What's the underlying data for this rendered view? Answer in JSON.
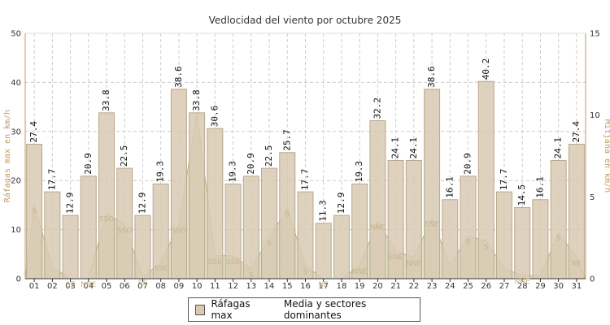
{
  "chart_data": {
    "type": "bar",
    "title": "Vedlocidad del viento por octubre 2025",
    "ylabel": "Ráfagas max en km/h",
    "ylabel_right": "Mitjana en km/h",
    "ylim": [
      0,
      50
    ],
    "ylim_right": [
      0,
      15
    ],
    "yticks": [
      0,
      10,
      20,
      30,
      40,
      50
    ],
    "yticks_right": [
      0,
      5,
      10,
      15
    ],
    "grid": true,
    "legend_position": "bottom-center",
    "categories": [
      "01",
      "02",
      "03",
      "04",
      "05",
      "06",
      "07",
      "08",
      "09",
      "10",
      "11",
      "12",
      "13",
      "14",
      "15",
      "16",
      "17",
      "18",
      "19",
      "20",
      "21",
      "22",
      "23",
      "24",
      "25",
      "26",
      "27",
      "28",
      "29",
      "30",
      "31"
    ],
    "series": [
      {
        "name": "Ráfagas max",
        "color": "#d8c9b1",
        "values": [
          27.4,
          17.7,
          12.9,
          20.9,
          33.8,
          22.5,
          12.9,
          19.3,
          38.6,
          33.8,
          30.6,
          19.3,
          20.9,
          22.5,
          25.7,
          17.7,
          11.3,
          12.9,
          19.3,
          32.2,
          24.1,
          24.1,
          38.6,
          16.1,
          20.9,
          40.2,
          17.7,
          14.5,
          16.1,
          24.1,
          27.4
        ]
      },
      {
        "name": "Media y sectores dominantes",
        "color": "#c9caa2",
        "values": [
          4.5,
          0.7,
          0,
          0,
          4,
          3.3,
          0.1,
          1,
          3.3,
          10.1,
          1.4,
          1.4,
          0.6,
          2.5,
          4.3,
          0.8,
          0,
          0,
          0.8,
          3.5,
          1.7,
          1.3,
          3.7,
          0.8,
          2.6,
          2.3,
          0.6,
          0.2,
          0.2,
          2.8,
          1.3
        ],
        "sectors": [
          "S",
          "",
          "SE",
          "NNE",
          "SSO",
          "SSO",
          "SE",
          "SSE",
          "SSO",
          "",
          "SSE",
          "SSE",
          "S",
          "S",
          "S",
          "S",
          "NE",
          "",
          "NNE",
          "NNE",
          "ENE",
          "NNE",
          "ENE",
          "",
          "E",
          "S",
          "",
          "NNE",
          "",
          "S",
          "NE"
        ]
      }
    ]
  }
}
